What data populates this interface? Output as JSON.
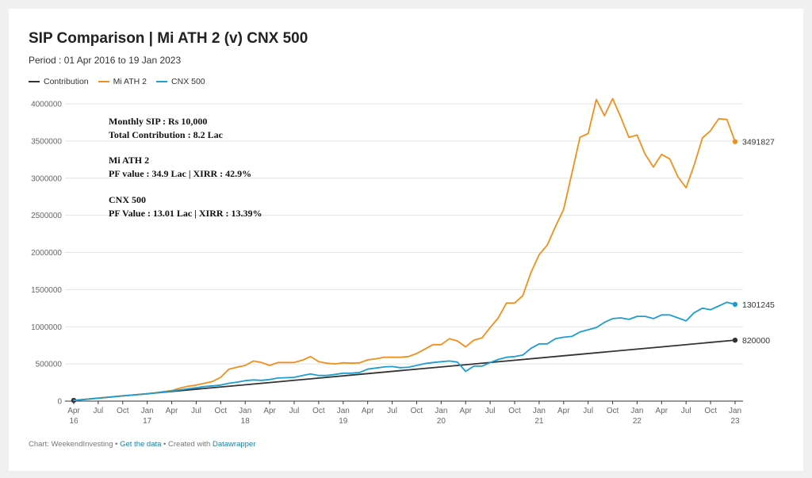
{
  "chart_data": {
    "type": "line",
    "title": "SIP Comparison | Mi ATH 2 (v) CNX 500",
    "subtitle": "Period : 01 Apr 2016 to 19 Jan 2023",
    "xlabel": "",
    "ylabel": "",
    "ylim": [
      0,
      4000000
    ],
    "y_ticks": [
      0,
      500000,
      1000000,
      1500000,
      2000000,
      2500000,
      3000000,
      3500000,
      4000000
    ],
    "x_range": [
      "2016-04",
      "2023-01"
    ],
    "x_ticks": [
      {
        "date": "2016-04",
        "label": "Apr",
        "year": "16"
      },
      {
        "date": "2016-07",
        "label": "Jul"
      },
      {
        "date": "2016-10",
        "label": "Oct"
      },
      {
        "date": "2017-01",
        "label": "Jan",
        "year": "17"
      },
      {
        "date": "2017-04",
        "label": "Apr"
      },
      {
        "date": "2017-07",
        "label": "Jul"
      },
      {
        "date": "2017-10",
        "label": "Oct"
      },
      {
        "date": "2018-01",
        "label": "Jan",
        "year": "18"
      },
      {
        "date": "2018-04",
        "label": "Apr"
      },
      {
        "date": "2018-07",
        "label": "Jul"
      },
      {
        "date": "2018-10",
        "label": "Oct"
      },
      {
        "date": "2019-01",
        "label": "Jan",
        "year": "19"
      },
      {
        "date": "2019-04",
        "label": "Apr"
      },
      {
        "date": "2019-07",
        "label": "Jul"
      },
      {
        "date": "2019-10",
        "label": "Oct"
      },
      {
        "date": "2020-01",
        "label": "Jan",
        "year": "20"
      },
      {
        "date": "2020-04",
        "label": "Apr"
      },
      {
        "date": "2020-07",
        "label": "Jul"
      },
      {
        "date": "2020-10",
        "label": "Oct"
      },
      {
        "date": "2021-01",
        "label": "Jan",
        "year": "21"
      },
      {
        "date": "2021-04",
        "label": "Apr"
      },
      {
        "date": "2021-07",
        "label": "Jul"
      },
      {
        "date": "2021-10",
        "label": "Oct"
      },
      {
        "date": "2022-01",
        "label": "Jan",
        "year": "22"
      },
      {
        "date": "2022-04",
        "label": "Apr"
      },
      {
        "date": "2022-07",
        "label": "Jul"
      },
      {
        "date": "2022-10",
        "label": "Oct"
      },
      {
        "date": "2023-01",
        "label": "Jan",
        "year": "23"
      }
    ],
    "grid": "horizontal",
    "legend_position": "top-left",
    "series": [
      {
        "name": "Contribution",
        "color": "#333333",
        "end_label": "820000",
        "points": [
          [
            "2016-04",
            10000
          ],
          [
            "2017-04",
            130000
          ],
          [
            "2018-04",
            250000
          ],
          [
            "2019-04",
            370000
          ],
          [
            "2020-04",
            490000
          ],
          [
            "2021-04",
            610000
          ],
          [
            "2022-04",
            730000
          ],
          [
            "2023-01",
            820000
          ]
        ]
      },
      {
        "name": "Mi ATH 2",
        "color": "#f18f1c",
        "end_label": "3491827",
        "points": [
          [
            "2016-04",
            10000
          ],
          [
            "2016-07",
            42000
          ],
          [
            "2016-10",
            72000
          ],
          [
            "2017-01",
            98000
          ],
          [
            "2017-04",
            142000
          ],
          [
            "2017-05",
            175000
          ],
          [
            "2017-06",
            200000
          ],
          [
            "2017-07",
            215000
          ],
          [
            "2017-08",
            240000
          ],
          [
            "2017-09",
            265000
          ],
          [
            "2017-10",
            320000
          ],
          [
            "2017-11",
            430000
          ],
          [
            "2017-12",
            455000
          ],
          [
            "2018-01",
            480000
          ],
          [
            "2018-02",
            540000
          ],
          [
            "2018-03",
            520000
          ],
          [
            "2018-04",
            480000
          ],
          [
            "2018-05",
            520000
          ],
          [
            "2018-06",
            520000
          ],
          [
            "2018-07",
            520000
          ],
          [
            "2018-08",
            550000
          ],
          [
            "2018-09",
            600000
          ],
          [
            "2018-10",
            530000
          ],
          [
            "2018-11",
            510000
          ],
          [
            "2018-12",
            500000
          ],
          [
            "2019-01",
            515000
          ],
          [
            "2019-02",
            510000
          ],
          [
            "2019-03",
            515000
          ],
          [
            "2019-04",
            555000
          ],
          [
            "2019-05",
            570000
          ],
          [
            "2019-06",
            590000
          ],
          [
            "2019-07",
            590000
          ],
          [
            "2019-08",
            590000
          ],
          [
            "2019-09",
            600000
          ],
          [
            "2019-10",
            640000
          ],
          [
            "2019-11",
            700000
          ],
          [
            "2019-12",
            760000
          ],
          [
            "2020-01",
            760000
          ],
          [
            "2020-02",
            840000
          ],
          [
            "2020-03",
            810000
          ],
          [
            "2020-04",
            730000
          ],
          [
            "2020-05",
            820000
          ],
          [
            "2020-06",
            850000
          ],
          [
            "2020-07",
            990000
          ],
          [
            "2020-08",
            1120000
          ],
          [
            "2020-09",
            1320000
          ],
          [
            "2020-10",
            1320000
          ],
          [
            "2020-11",
            1420000
          ],
          [
            "2020-12",
            1730000
          ],
          [
            "2021-01",
            1970000
          ],
          [
            "2021-02",
            2100000
          ],
          [
            "2021-03",
            2350000
          ],
          [
            "2021-04",
            2580000
          ],
          [
            "2021-05",
            3060000
          ],
          [
            "2021-06",
            3550000
          ],
          [
            "2021-07",
            3600000
          ],
          [
            "2021-08",
            4060000
          ],
          [
            "2021-09",
            3840000
          ],
          [
            "2021-10",
            4070000
          ],
          [
            "2021-11",
            3820000
          ],
          [
            "2021-12",
            3550000
          ],
          [
            "2022-01",
            3580000
          ],
          [
            "2022-02",
            3320000
          ],
          [
            "2022-03",
            3150000
          ],
          [
            "2022-04",
            3320000
          ],
          [
            "2022-05",
            3260000
          ],
          [
            "2022-06",
            3020000
          ],
          [
            "2022-07",
            2870000
          ],
          [
            "2022-08",
            3180000
          ],
          [
            "2022-09",
            3540000
          ],
          [
            "2022-10",
            3640000
          ],
          [
            "2022-11",
            3800000
          ],
          [
            "2022-12",
            3790000
          ],
          [
            "2023-01",
            3491827
          ]
        ]
      },
      {
        "name": "CNX 500",
        "color": "#1d9dd0",
        "end_label": "1301245",
        "points": [
          [
            "2016-04",
            10000
          ],
          [
            "2016-07",
            40000
          ],
          [
            "2016-10",
            70000
          ],
          [
            "2017-01",
            97000
          ],
          [
            "2017-04",
            135000
          ],
          [
            "2017-05",
            150000
          ],
          [
            "2017-06",
            165000
          ],
          [
            "2017-07",
            180000
          ],
          [
            "2017-08",
            195000
          ],
          [
            "2017-09",
            205000
          ],
          [
            "2017-10",
            215000
          ],
          [
            "2017-11",
            240000
          ],
          [
            "2017-12",
            255000
          ],
          [
            "2018-01",
            275000
          ],
          [
            "2018-02",
            285000
          ],
          [
            "2018-03",
            280000
          ],
          [
            "2018-04",
            290000
          ],
          [
            "2018-05",
            310000
          ],
          [
            "2018-06",
            315000
          ],
          [
            "2018-07",
            320000
          ],
          [
            "2018-08",
            345000
          ],
          [
            "2018-09",
            365000
          ],
          [
            "2018-10",
            345000
          ],
          [
            "2018-11",
            345000
          ],
          [
            "2018-12",
            360000
          ],
          [
            "2019-01",
            375000
          ],
          [
            "2019-02",
            375000
          ],
          [
            "2019-03",
            385000
          ],
          [
            "2019-04",
            430000
          ],
          [
            "2019-05",
            445000
          ],
          [
            "2019-06",
            460000
          ],
          [
            "2019-07",
            465000
          ],
          [
            "2019-08",
            450000
          ],
          [
            "2019-09",
            455000
          ],
          [
            "2019-10",
            480000
          ],
          [
            "2019-11",
            505000
          ],
          [
            "2019-12",
            520000
          ],
          [
            "2020-01",
            530000
          ],
          [
            "2020-02",
            540000
          ],
          [
            "2020-03",
            525000
          ],
          [
            "2020-04",
            400000
          ],
          [
            "2020-05",
            470000
          ],
          [
            "2020-06",
            470000
          ],
          [
            "2020-07",
            520000
          ],
          [
            "2020-08",
            560000
          ],
          [
            "2020-09",
            590000
          ],
          [
            "2020-10",
            600000
          ],
          [
            "2020-11",
            620000
          ],
          [
            "2020-12",
            710000
          ],
          [
            "2021-01",
            770000
          ],
          [
            "2021-02",
            770000
          ],
          [
            "2021-03",
            840000
          ],
          [
            "2021-04",
            860000
          ],
          [
            "2021-05",
            870000
          ],
          [
            "2021-06",
            930000
          ],
          [
            "2021-07",
            960000
          ],
          [
            "2021-08",
            990000
          ],
          [
            "2021-09",
            1060000
          ],
          [
            "2021-10",
            1110000
          ],
          [
            "2021-11",
            1120000
          ],
          [
            "2021-12",
            1100000
          ],
          [
            "2022-01",
            1140000
          ],
          [
            "2022-02",
            1140000
          ],
          [
            "2022-03",
            1110000
          ],
          [
            "2022-04",
            1160000
          ],
          [
            "2022-05",
            1160000
          ],
          [
            "2022-06",
            1120000
          ],
          [
            "2022-07",
            1080000
          ],
          [
            "2022-08",
            1190000
          ],
          [
            "2022-09",
            1250000
          ],
          [
            "2022-10",
            1230000
          ],
          [
            "2022-11",
            1280000
          ],
          [
            "2022-12",
            1330000
          ],
          [
            "2023-01",
            1301245
          ]
        ]
      }
    ],
    "annotations": [
      "Monthly SIP : Rs 10,000",
      "Total Contribution : 8.2 Lac",
      "Mi ATH 2",
      "PF value : 34.9 Lac | XIRR : 42.9%",
      "CNX 500",
      "PF Value : 13.01 Lac | XIRR : 13.39%"
    ]
  },
  "footer": {
    "source_prefix": "Chart: WeekendInvesting • ",
    "get_data_link": "Get the data",
    "created_with": " • Created with ",
    "datawrapper_link": "Datawrapper"
  }
}
